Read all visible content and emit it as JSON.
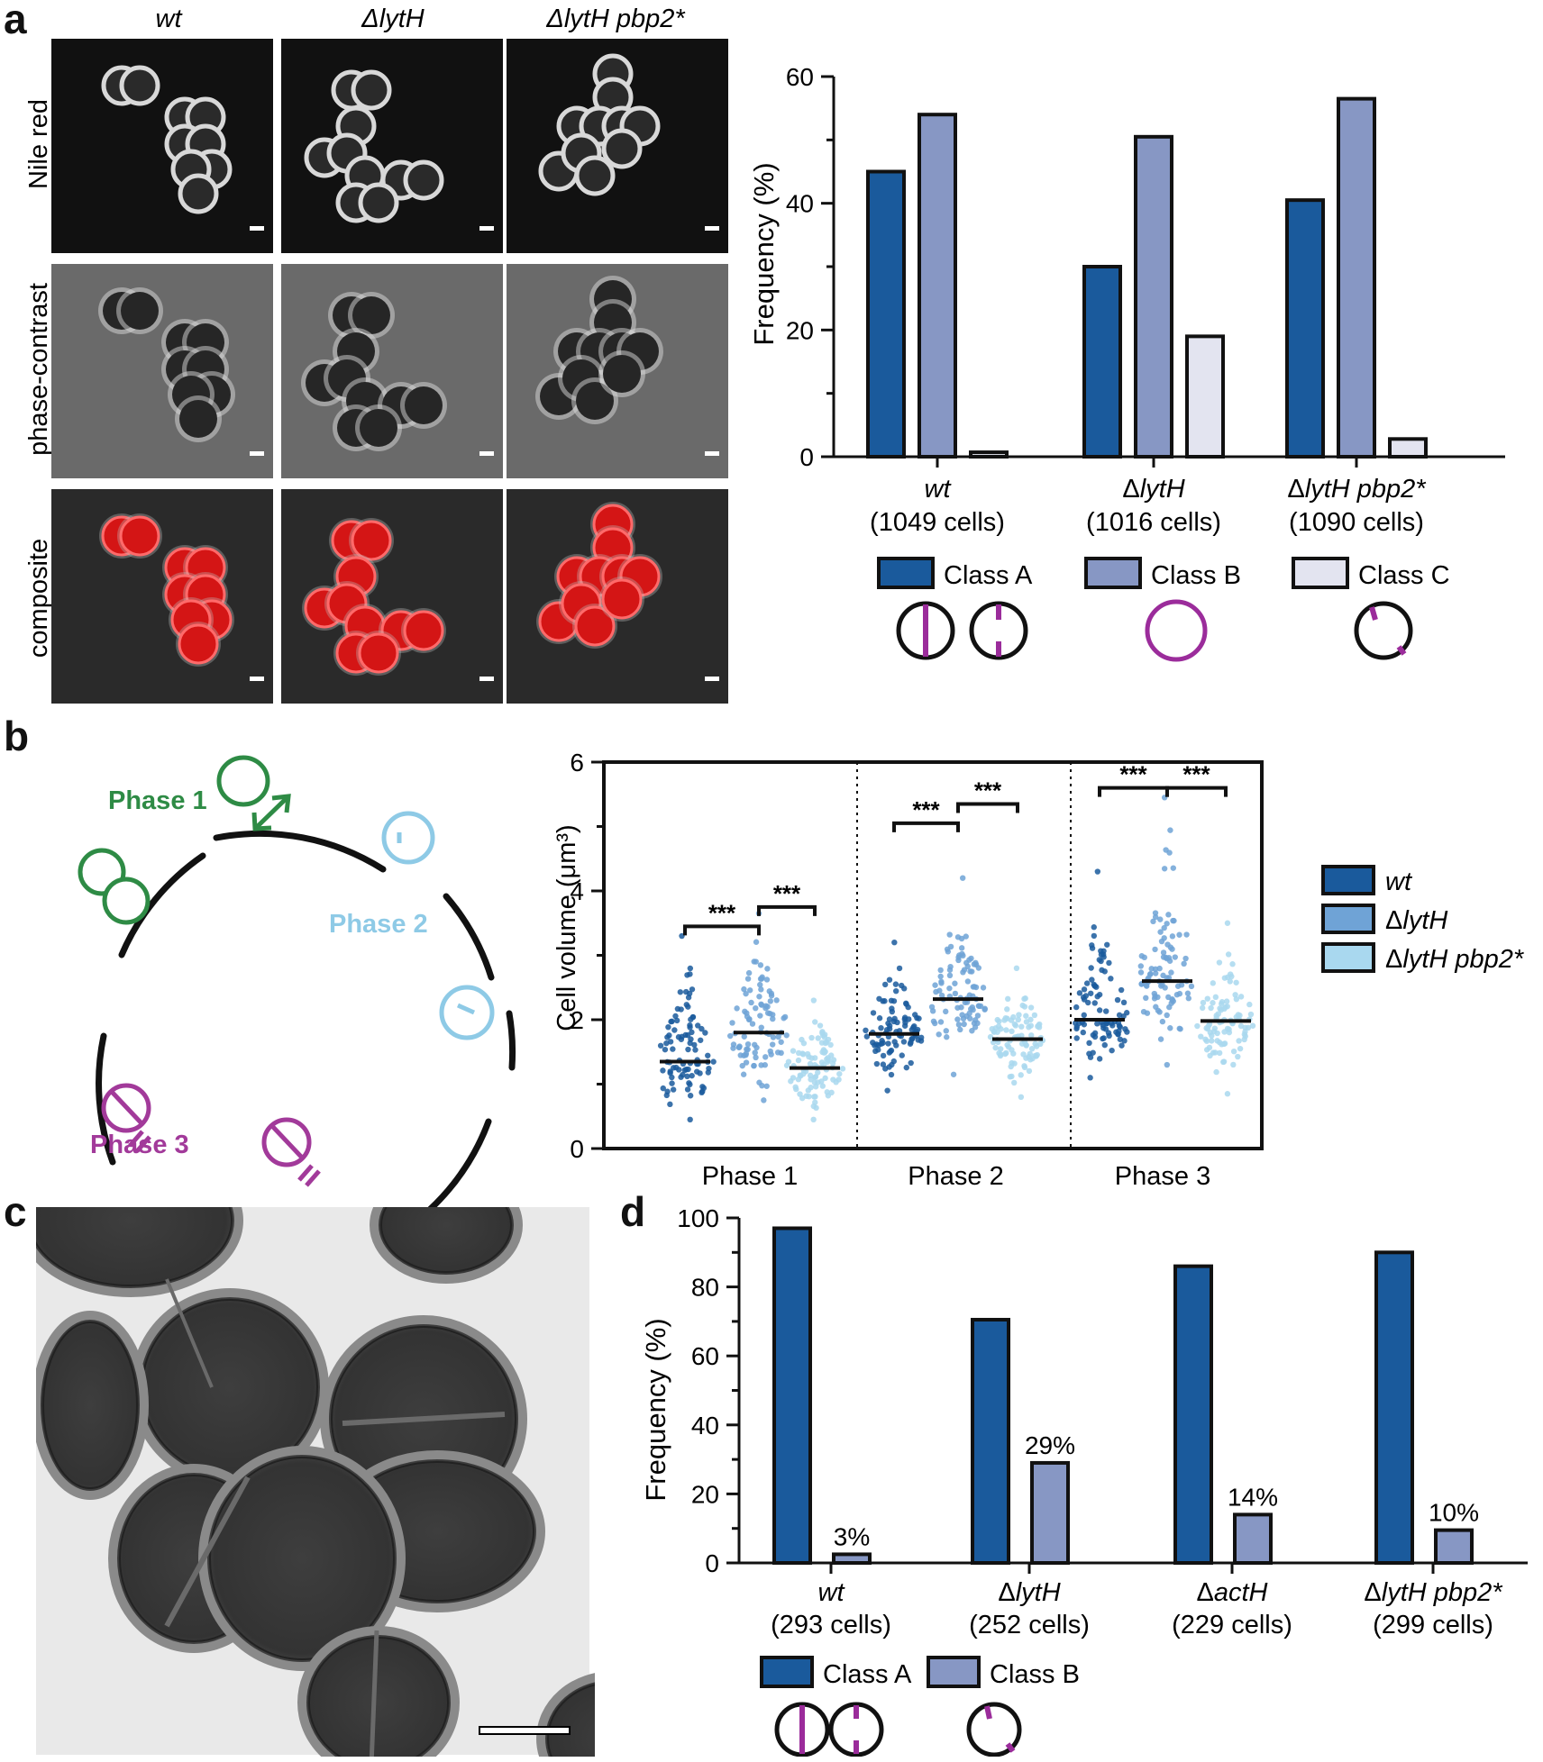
{
  "panel_labels": {
    "a": "a",
    "b": "b",
    "c": "c",
    "d": "d"
  },
  "panel_a": {
    "column_headers": [
      "wt",
      "ΔlytH",
      "ΔlytH pbp2*"
    ],
    "row_labels": [
      "Nile red",
      "phase-contrast",
      "composite"
    ]
  },
  "panel_b_cycle": {
    "phase_labels": [
      "Phase 1",
      "Phase 2",
      "Phase 3"
    ],
    "colors": {
      "phase1": "#2e8b45",
      "phase2": "#8ecae6",
      "phase3": "#a23a9a"
    }
  },
  "chart_data": [
    {
      "id": "panel-a-chart",
      "type": "bar",
      "ylabel": "Frequency (%)",
      "ylim": [
        0,
        60
      ],
      "yticks": [
        0,
        20,
        40,
        60
      ],
      "categories": [
        "wt",
        "ΔlytH",
        "ΔlytH pbp2*"
      ],
      "category_cells": [
        "(1049 cells)",
        "(1016 cells)",
        "(1090 cells)"
      ],
      "series": [
        {
          "name": "Class A",
          "color": "#1a5a9c",
          "values": [
            45,
            30,
            40.5
          ]
        },
        {
          "name": "Class B",
          "color": "#8797c4",
          "values": [
            54,
            50.5,
            56.5
          ]
        },
        {
          "name": "Class C",
          "color": "#e3e4f0",
          "values": [
            0.7,
            19,
            2.8
          ]
        }
      ]
    },
    {
      "id": "panel-b-chart",
      "type": "scatter",
      "ylabel": "Cell volume (μm³)",
      "ylim": [
        0,
        6
      ],
      "yticks": [
        0,
        2,
        4,
        6
      ],
      "categories": [
        "Phase 1",
        "Phase 2",
        "Phase 3"
      ],
      "series": [
        {
          "name": "wt",
          "color": "#1a5a9c",
          "medians": [
            1.35,
            1.78,
            2.0
          ],
          "ranges": [
            [
              0.45,
              3.3
            ],
            [
              0.9,
              3.2
            ],
            [
              1.1,
              4.3
            ]
          ]
        },
        {
          "name": "ΔlytH",
          "color": "#6fa3d6",
          "medians": [
            1.8,
            2.32,
            2.6
          ],
          "ranges": [
            [
              0.75,
              3.65
            ],
            [
              1.15,
              4.2
            ],
            [
              1.3,
              5.45
            ]
          ]
        },
        {
          "name": "ΔlytH pbp2*",
          "color": "#a9d8ef",
          "medians": [
            1.25,
            1.7,
            1.98
          ],
          "ranges": [
            [
              0.45,
              2.3
            ],
            [
              0.8,
              2.8
            ],
            [
              0.85,
              3.5
            ]
          ]
        }
      ],
      "significance": "***"
    },
    {
      "id": "panel-d-chart",
      "type": "bar",
      "ylabel": "Frequency (%)",
      "ylim": [
        0,
        100
      ],
      "yticks": [
        0,
        20,
        40,
        60,
        80,
        100
      ],
      "categories": [
        "wt",
        "ΔlytH",
        "ΔactH",
        "ΔlytH pbp2*"
      ],
      "category_cells": [
        "(293 cells)",
        "(252 cells)",
        "(229 cells)",
        "(299 cells)"
      ],
      "series": [
        {
          "name": "Class A",
          "color": "#1a5a9c",
          "values": [
            97,
            70.5,
            86,
            90
          ]
        },
        {
          "name": "Class B",
          "color": "#8797c4",
          "values": [
            2.5,
            29,
            14,
            9.5
          ]
        }
      ],
      "data_labels": [
        "3%",
        "29%",
        "14%",
        "10%"
      ]
    }
  ]
}
